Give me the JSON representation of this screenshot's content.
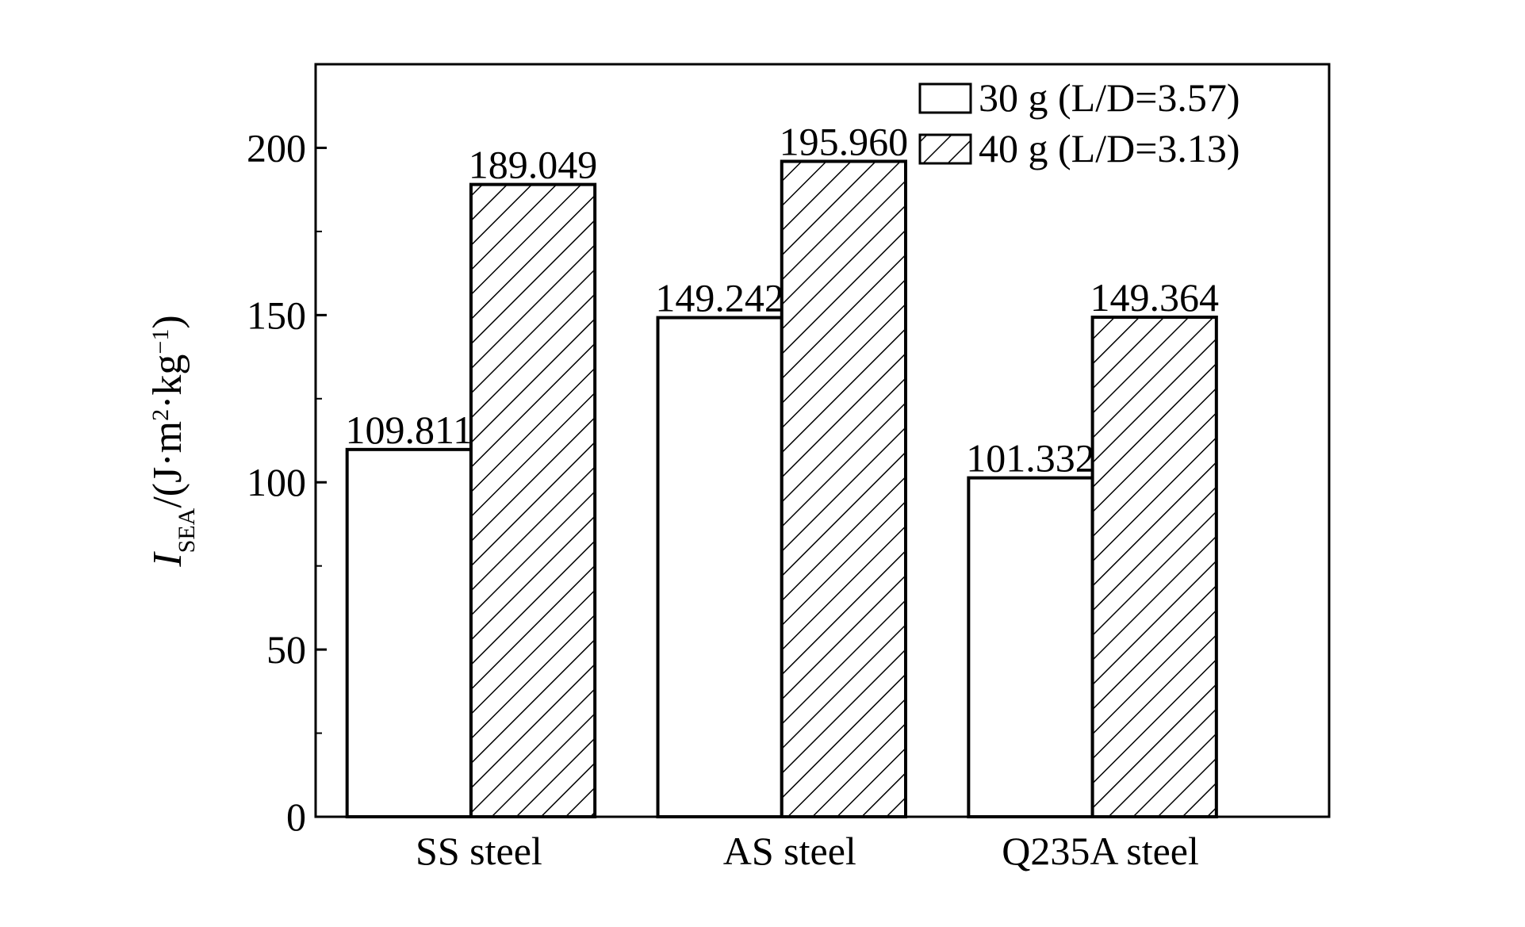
{
  "chart_data": {
    "type": "bar",
    "y_label": [
      "I",
      "SEA",
      "/(J·m",
      "2",
      "·kg",
      "−1",
      ")"
    ],
    "categories": [
      "SS steel",
      "AS steel",
      "Q235A steel"
    ],
    "series": [
      {
        "name": "30 g (L/D=3.57)",
        "color": "#ffffff",
        "pattern": "none",
        "values": [
          109.811,
          149.242,
          101.332
        ],
        "value_labels": [
          "109.811",
          "149.242",
          "101.332"
        ]
      },
      {
        "name": "40 g (L/D=3.13)",
        "color": "#ffffff",
        "pattern": "hatch",
        "values": [
          189.049,
          195.96,
          149.364
        ],
        "value_labels": [
          "189.049",
          "195.960",
          "149.364"
        ]
      }
    ],
    "ylim": [
      0,
      225
    ],
    "yticks": [
      0,
      50,
      100,
      150,
      200
    ],
    "yminorticks": [
      25,
      75,
      125,
      175
    ],
    "legend": "top-right",
    "grid": false
  }
}
